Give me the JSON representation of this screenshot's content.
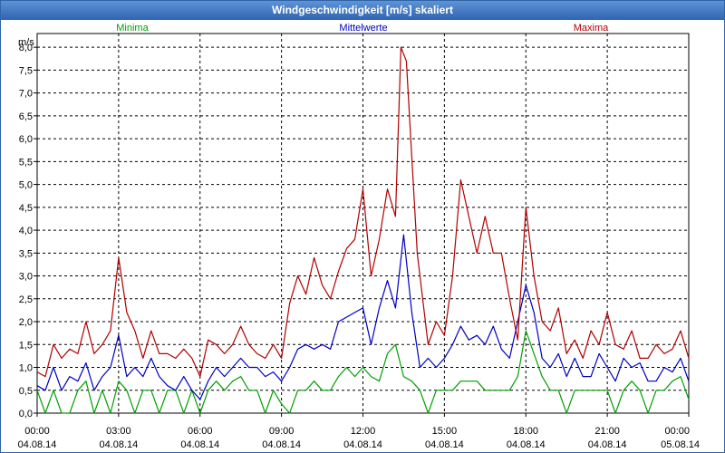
{
  "window": {
    "title": "Windgeschwindigkeit [m/s] skaliert"
  },
  "chart_data": {
    "type": "line",
    "title": "Windgeschwindigkeit [m/s] skaliert",
    "ylabel": "m/s",
    "ylim": [
      0,
      8.3
    ],
    "xlim": [
      0,
      24
    ],
    "yticks": [
      "0,0",
      "0,5",
      "1,0",
      "1,5",
      "2,0",
      "2,5",
      "3,0",
      "3,5",
      "4,0",
      "4,5",
      "5,0",
      "5,5",
      "6,0",
      "6,5",
      "7,0",
      "7,5",
      "8,0"
    ],
    "xticks": [
      {
        "time": "00:00",
        "date": "04.08.14"
      },
      {
        "time": "03:00",
        "date": "04.08.14"
      },
      {
        "time": "06:00",
        "date": "04.08.14"
      },
      {
        "time": "09:00",
        "date": "04.08.14"
      },
      {
        "time": "12:00",
        "date": "04.08.14"
      },
      {
        "time": "15:00",
        "date": "04.08.14"
      },
      {
        "time": "18:00",
        "date": "04.08.14"
      },
      {
        "time": "21:00",
        "date": "04.08.14"
      },
      {
        "time": "00:00",
        "date": "05.08.14"
      }
    ],
    "grid": true,
    "legend": "top",
    "series": [
      {
        "name": "Minima",
        "color": "#00a000",
        "points": [
          [
            0,
            0.5
          ],
          [
            0.3,
            0
          ],
          [
            0.6,
            0.5
          ],
          [
            0.9,
            0
          ],
          [
            1.2,
            0
          ],
          [
            1.5,
            0.5
          ],
          [
            1.8,
            0.7
          ],
          [
            2.1,
            0
          ],
          [
            2.4,
            0.5
          ],
          [
            2.7,
            0
          ],
          [
            3.0,
            0.7
          ],
          [
            3.3,
            0.5
          ],
          [
            3.6,
            0
          ],
          [
            3.9,
            0.5
          ],
          [
            4.2,
            0.5
          ],
          [
            4.5,
            0
          ],
          [
            4.8,
            0.5
          ],
          [
            5.1,
            0.5
          ],
          [
            5.4,
            0
          ],
          [
            5.7,
            0.5
          ],
          [
            6.0,
            0
          ],
          [
            6.3,
            0.5
          ],
          [
            6.6,
            0.7
          ],
          [
            6.9,
            0.5
          ],
          [
            7.2,
            0.7
          ],
          [
            7.5,
            0.8
          ],
          [
            7.8,
            0.5
          ],
          [
            8.1,
            0.5
          ],
          [
            8.4,
            0
          ],
          [
            8.7,
            0.5
          ],
          [
            9.0,
            0.2
          ],
          [
            9.3,
            0
          ],
          [
            9.6,
            0.5
          ],
          [
            9.9,
            0.5
          ],
          [
            10.2,
            0.7
          ],
          [
            10.5,
            0.5
          ],
          [
            10.8,
            0.5
          ],
          [
            11.1,
            0.8
          ],
          [
            11.4,
            1.0
          ],
          [
            11.7,
            0.8
          ],
          [
            12.0,
            1.0
          ],
          [
            12.3,
            0.8
          ],
          [
            12.6,
            0.7
          ],
          [
            12.9,
            1.3
          ],
          [
            13.2,
            1.5
          ],
          [
            13.5,
            0.8
          ],
          [
            13.8,
            0.7
          ],
          [
            14.1,
            0.5
          ],
          [
            14.4,
            0
          ],
          [
            14.7,
            0.5
          ],
          [
            15.0,
            0.5
          ],
          [
            15.3,
            0.5
          ],
          [
            15.6,
            0.7
          ],
          [
            15.9,
            0.7
          ],
          [
            16.2,
            0.7
          ],
          [
            16.5,
            0.5
          ],
          [
            16.8,
            0.5
          ],
          [
            17.1,
            0.5
          ],
          [
            17.4,
            0.5
          ],
          [
            17.7,
            0.8
          ],
          [
            18.0,
            1.8
          ],
          [
            18.3,
            1.3
          ],
          [
            18.6,
            0.8
          ],
          [
            18.9,
            0.5
          ],
          [
            19.2,
            0.5
          ],
          [
            19.5,
            0
          ],
          [
            19.8,
            0.5
          ],
          [
            20.1,
            0.5
          ],
          [
            20.4,
            0.5
          ],
          [
            20.7,
            0.5
          ],
          [
            21.0,
            0.5
          ],
          [
            21.3,
            0
          ],
          [
            21.6,
            0.5
          ],
          [
            21.9,
            0.7
          ],
          [
            22.2,
            0.5
          ],
          [
            22.5,
            0
          ],
          [
            22.8,
            0.5
          ],
          [
            23.1,
            0.5
          ],
          [
            23.4,
            0.7
          ],
          [
            23.7,
            0.8
          ],
          [
            24.0,
            0.3
          ]
        ]
      },
      {
        "name": "Mittelwerte",
        "color": "#0000c0",
        "points": [
          [
            0,
            0.6
          ],
          [
            0.3,
            0.5
          ],
          [
            0.6,
            1.0
          ],
          [
            0.9,
            0.5
          ],
          [
            1.2,
            0.8
          ],
          [
            1.5,
            0.7
          ],
          [
            1.8,
            1.1
          ],
          [
            2.1,
            0.5
          ],
          [
            2.4,
            0.8
          ],
          [
            2.7,
            1.0
          ],
          [
            3.0,
            1.7
          ],
          [
            3.3,
            0.8
          ],
          [
            3.6,
            1.0
          ],
          [
            3.9,
            0.8
          ],
          [
            4.2,
            1.2
          ],
          [
            4.5,
            0.8
          ],
          [
            4.8,
            0.6
          ],
          [
            5.1,
            0.5
          ],
          [
            5.4,
            0.8
          ],
          [
            5.7,
            0.5
          ],
          [
            6.0,
            0.3
          ],
          [
            6.3,
            0.7
          ],
          [
            6.6,
            1.0
          ],
          [
            6.9,
            0.8
          ],
          [
            7.2,
            1.0
          ],
          [
            7.5,
            1.2
          ],
          [
            7.8,
            1.0
          ],
          [
            8.1,
            1.0
          ],
          [
            8.4,
            0.8
          ],
          [
            8.7,
            0.9
          ],
          [
            9.0,
            0.7
          ],
          [
            9.3,
            1.0
          ],
          [
            9.6,
            1.4
          ],
          [
            9.9,
            1.5
          ],
          [
            10.2,
            1.4
          ],
          [
            10.5,
            1.5
          ],
          [
            10.8,
            1.4
          ],
          [
            11.1,
            2.0
          ],
          [
            11.4,
            2.1
          ],
          [
            11.7,
            2.2
          ],
          [
            12.0,
            2.3
          ],
          [
            12.3,
            1.5
          ],
          [
            12.6,
            2.3
          ],
          [
            12.9,
            2.9
          ],
          [
            13.2,
            2.3
          ],
          [
            13.5,
            3.9
          ],
          [
            13.8,
            2.2
          ],
          [
            14.1,
            1.0
          ],
          [
            14.4,
            1.2
          ],
          [
            14.7,
            1.0
          ],
          [
            15.0,
            1.2
          ],
          [
            15.3,
            1.5
          ],
          [
            15.6,
            1.9
          ],
          [
            15.9,
            1.6
          ],
          [
            16.2,
            1.7
          ],
          [
            16.5,
            1.5
          ],
          [
            16.8,
            1.9
          ],
          [
            17.1,
            1.4
          ],
          [
            17.4,
            1.2
          ],
          [
            17.7,
            2.0
          ],
          [
            18.0,
            2.8
          ],
          [
            18.3,
            2.2
          ],
          [
            18.6,
            1.2
          ],
          [
            18.9,
            1.0
          ],
          [
            19.2,
            1.3
          ],
          [
            19.5,
            0.8
          ],
          [
            19.8,
            1.2
          ],
          [
            20.1,
            0.8
          ],
          [
            20.4,
            0.8
          ],
          [
            20.7,
            1.3
          ],
          [
            21.0,
            1.0
          ],
          [
            21.3,
            0.7
          ],
          [
            21.6,
            1.2
          ],
          [
            21.9,
            1.0
          ],
          [
            22.2,
            1.1
          ],
          [
            22.5,
            0.7
          ],
          [
            22.8,
            0.7
          ],
          [
            23.1,
            1.0
          ],
          [
            23.4,
            0.9
          ],
          [
            23.7,
            1.2
          ],
          [
            24.0,
            0.7
          ]
        ]
      },
      {
        "name": "Maxima",
        "color": "#b00000",
        "points": [
          [
            0,
            0.9
          ],
          [
            0.3,
            0.8
          ],
          [
            0.6,
            1.5
          ],
          [
            0.9,
            1.2
          ],
          [
            1.2,
            1.4
          ],
          [
            1.5,
            1.3
          ],
          [
            1.8,
            2.0
          ],
          [
            2.1,
            1.3
          ],
          [
            2.4,
            1.5
          ],
          [
            2.7,
            1.8
          ],
          [
            3.0,
            3.4
          ],
          [
            3.3,
            2.2
          ],
          [
            3.6,
            1.8
          ],
          [
            3.9,
            1.2
          ],
          [
            4.2,
            1.8
          ],
          [
            4.5,
            1.3
          ],
          [
            4.8,
            1.3
          ],
          [
            5.1,
            1.2
          ],
          [
            5.4,
            1.4
          ],
          [
            5.7,
            1.2
          ],
          [
            6.0,
            0.8
          ],
          [
            6.3,
            1.6
          ],
          [
            6.6,
            1.5
          ],
          [
            6.9,
            1.3
          ],
          [
            7.2,
            1.5
          ],
          [
            7.5,
            1.9
          ],
          [
            7.8,
            1.5
          ],
          [
            8.1,
            1.3
          ],
          [
            8.4,
            1.2
          ],
          [
            8.7,
            1.5
          ],
          [
            9.0,
            1.2
          ],
          [
            9.3,
            2.4
          ],
          [
            9.6,
            3.0
          ],
          [
            9.9,
            2.6
          ],
          [
            10.2,
            3.4
          ],
          [
            10.5,
            2.8
          ],
          [
            10.8,
            2.5
          ],
          [
            11.1,
            3.1
          ],
          [
            11.4,
            3.6
          ],
          [
            11.7,
            3.8
          ],
          [
            12.0,
            4.9
          ],
          [
            12.3,
            3.0
          ],
          [
            12.6,
            3.8
          ],
          [
            12.9,
            4.9
          ],
          [
            13.2,
            4.3
          ],
          [
            13.4,
            8.0
          ],
          [
            13.6,
            7.7
          ],
          [
            14.0,
            3.5
          ],
          [
            14.2,
            2.5
          ],
          [
            14.4,
            1.5
          ],
          [
            14.7,
            2.0
          ],
          [
            15.0,
            1.7
          ],
          [
            15.3,
            3.0
          ],
          [
            15.6,
            5.1
          ],
          [
            15.9,
            4.3
          ],
          [
            16.2,
            3.5
          ],
          [
            16.5,
            4.3
          ],
          [
            16.8,
            3.5
          ],
          [
            17.1,
            3.5
          ],
          [
            17.4,
            2.5
          ],
          [
            17.7,
            1.6
          ],
          [
            18.0,
            4.5
          ],
          [
            18.3,
            3.0
          ],
          [
            18.6,
            2.0
          ],
          [
            18.9,
            1.8
          ],
          [
            19.2,
            2.3
          ],
          [
            19.5,
            1.3
          ],
          [
            19.8,
            1.6
          ],
          [
            20.1,
            1.2
          ],
          [
            20.4,
            1.8
          ],
          [
            20.7,
            1.5
          ],
          [
            21.0,
            2.2
          ],
          [
            21.3,
            1.5
          ],
          [
            21.6,
            1.4
          ],
          [
            21.9,
            1.8
          ],
          [
            22.2,
            1.2
          ],
          [
            22.5,
            1.2
          ],
          [
            22.8,
            1.5
          ],
          [
            23.1,
            1.3
          ],
          [
            23.4,
            1.4
          ],
          [
            23.7,
            1.8
          ],
          [
            24.0,
            1.2
          ]
        ]
      }
    ]
  }
}
